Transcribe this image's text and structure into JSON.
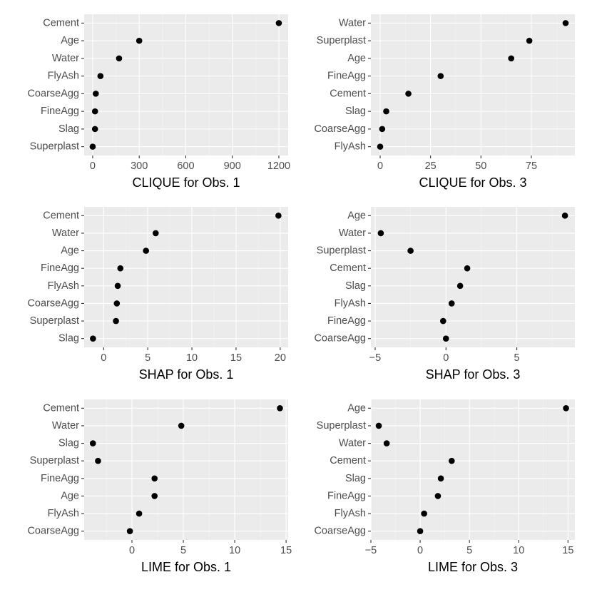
{
  "chart_data": [
    {
      "type": "scatter",
      "title": "",
      "xlabel": "CLIQUE for Obs. 1",
      "xlim": [
        -55,
        1260
      ],
      "xticks": [
        0,
        300,
        600,
        900,
        1200
      ],
      "xtick_labels": [
        "0",
        "300",
        "600",
        "900",
        "1200"
      ],
      "categories": [
        "Cement",
        "Age",
        "Water",
        "FlyAsh",
        "CoarseAgg",
        "FineAgg",
        "Slag",
        "Superplast"
      ],
      "values": [
        1200,
        300,
        170,
        50,
        20,
        15,
        15,
        0
      ]
    },
    {
      "type": "scatter",
      "title": "",
      "xlabel": "CLIQUE for Obs. 3",
      "xlim": [
        -4.6,
        96.6
      ],
      "xticks": [
        0,
        25,
        50,
        75
      ],
      "xtick_labels": [
        "0",
        "25",
        "50",
        "75"
      ],
      "categories": [
        "Water",
        "Superplast",
        "Age",
        "FineAgg",
        "Cement",
        "Slag",
        "CoarseAgg",
        "FlyAsh"
      ],
      "values": [
        92,
        74,
        65,
        30,
        14,
        3,
        1,
        0
      ]
    },
    {
      "type": "scatter",
      "title": "",
      "xlabel": "SHAP for Obs. 1",
      "xlim": [
        -2.2,
        20.9
      ],
      "xticks": [
        0,
        5,
        10,
        15,
        20
      ],
      "xtick_labels": [
        "0",
        "5",
        "10",
        "15",
        "20"
      ],
      "categories": [
        "Cement",
        "Water",
        "Age",
        "FineAgg",
        "FlyAsh",
        "CoarseAgg",
        "Superplast",
        "Slag"
      ],
      "values": [
        19.8,
        5.9,
        4.8,
        1.9,
        1.6,
        1.5,
        1.4,
        -1.2
      ]
    },
    {
      "type": "scatter",
      "title": "",
      "xlabel": "SHAP for Obs. 3",
      "xlim": [
        -5.3,
        9.1
      ],
      "xticks": [
        -5,
        0,
        5
      ],
      "xtick_labels": [
        "−5",
        "0",
        "5"
      ],
      "categories": [
        "Age",
        "Water",
        "Superplast",
        "Cement",
        "Slag",
        "FlyAsh",
        "FineAgg",
        "CoarseAgg"
      ],
      "values": [
        8.4,
        -4.6,
        -2.5,
        1.5,
        1.0,
        0.4,
        -0.2,
        0.0
      ]
    },
    {
      "type": "scatter",
      "title": "",
      "xlabel": "LIME for Obs. 1",
      "xlim": [
        -4.65,
        15.2
      ],
      "xticks": [
        0,
        5,
        10,
        15
      ],
      "xtick_labels": [
        "0",
        "5",
        "10",
        "15"
      ],
      "categories": [
        "Cement",
        "Water",
        "Slag",
        "Superplast",
        "FineAgg",
        "Age",
        "FlyAsh",
        "CoarseAgg"
      ],
      "values": [
        14.4,
        4.8,
        -3.8,
        -3.3,
        2.2,
        2.2,
        0.7,
        -0.2
      ]
    },
    {
      "type": "scatter",
      "title": "",
      "xlabel": "LIME for Obs. 3",
      "xlim": [
        -5.0,
        15.7
      ],
      "xticks": [
        -5,
        0,
        5,
        10,
        15
      ],
      "xtick_labels": [
        "−5",
        "0",
        "5",
        "10",
        "15"
      ],
      "categories": [
        "Age",
        "Superplast",
        "Water",
        "Cement",
        "Slag",
        "FineAgg",
        "FlyAsh",
        "CoarseAgg"
      ],
      "values": [
        14.8,
        -4.2,
        -3.4,
        3.2,
        2.1,
        1.8,
        0.4,
        0.0
      ]
    }
  ]
}
